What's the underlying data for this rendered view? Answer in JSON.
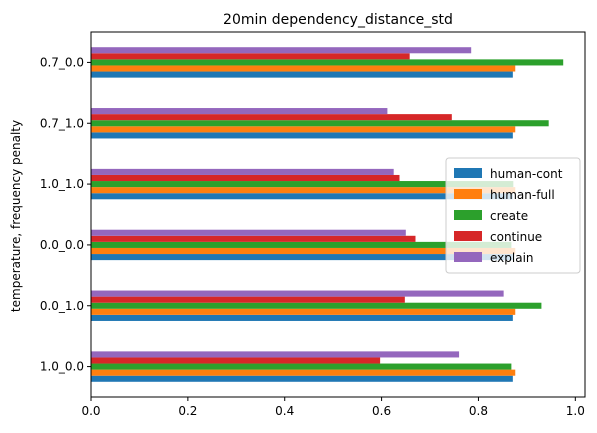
{
  "chart_data": {
    "type": "bar",
    "orientation": "horizontal",
    "title": "20min dependency_distance_std",
    "xlabel": "",
    "ylabel": "temperature, frequency penalty",
    "xlim": [
      0.0,
      1.02
    ],
    "xticks": [
      "0.0",
      "0.2",
      "0.4",
      "0.6",
      "0.8",
      "1.0"
    ],
    "categories": [
      "1.0_0.0",
      "0.0_1.0",
      "0.0_0.0",
      "1.0_1.0",
      "0.7_1.0",
      "0.7_0.0"
    ],
    "grid": false,
    "legend_position": "center-right",
    "series": [
      {
        "name": "human-cont",
        "color": "#1f77b4",
        "values": [
          0.871,
          0.871,
          0.871,
          0.871,
          0.871,
          0.871
        ]
      },
      {
        "name": "human-full",
        "color": "#ff7f0e",
        "values": [
          0.876,
          0.876,
          0.876,
          0.876,
          0.876,
          0.876
        ]
      },
      {
        "name": "create",
        "color": "#2ca02c",
        "values": [
          0.868,
          0.93,
          0.868,
          0.872,
          0.945,
          0.975
        ]
      },
      {
        "name": "continue",
        "color": "#d62728",
        "values": [
          0.597,
          0.648,
          0.67,
          0.637,
          0.745,
          0.658
        ]
      },
      {
        "name": "explain",
        "color": "#9467bd",
        "values": [
          0.76,
          0.852,
          0.65,
          0.625,
          0.612,
          0.785
        ]
      }
    ]
  }
}
